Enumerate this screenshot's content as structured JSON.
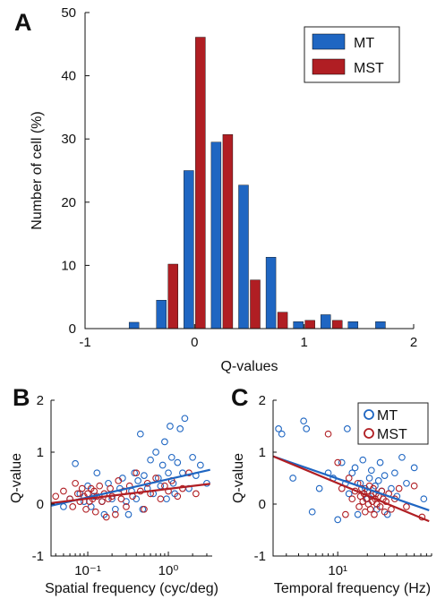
{
  "chart_data": [
    {
      "panel": "A",
      "type": "bar",
      "xlabel": "Q-values",
      "ylabel": "Number of cell (%)",
      "xlim": [
        -1,
        2
      ],
      "ylim": [
        0,
        50
      ],
      "xticks": [
        -1,
        0,
        1,
        2
      ],
      "yticks": [
        0,
        10,
        20,
        30,
        40,
        50
      ],
      "legend_position": "top-right",
      "bin_centers": [
        -0.75,
        -0.5,
        -0.25,
        0.0,
        0.25,
        0.5,
        0.75,
        1.0,
        1.25,
        1.5,
        1.75
      ],
      "series": [
        {
          "name": "MT",
          "color": "#1f66c2",
          "values": [
            0,
            1,
            4.5,
            25,
            29.5,
            22.7,
            11.3,
            1.1,
            2.2,
            1.1,
            1.1
          ]
        },
        {
          "name": "MST",
          "color": "#b01e23",
          "values": [
            0,
            0,
            10.2,
            46.1,
            30.7,
            7.7,
            2.6,
            1.3,
            1.3,
            0,
            0
          ]
        }
      ]
    },
    {
      "panel": "B",
      "type": "scatter",
      "xlabel": "Spatial frequency (cyc/deg)",
      "ylabel": "Q-value",
      "xscale": "log",
      "xlim": [
        0.035,
        3.5
      ],
      "ylim": [
        -1,
        2
      ],
      "xticks": [
        0.1,
        1.0
      ],
      "xtick_labels": [
        "10⁻¹",
        "10⁰"
      ],
      "yticks": [
        -1,
        0,
        1,
        2
      ],
      "series": [
        {
          "name": "MT",
          "color": "#1f66c2",
          "fit": [
            [
              0.035,
              -0.03
            ],
            [
              3.3,
              0.66
            ]
          ],
          "points": [
            [
              0.05,
              -0.05
            ],
            [
              0.06,
              0.1
            ],
            [
              0.07,
              0.78
            ],
            [
              0.08,
              0.2
            ],
            [
              0.09,
              0.05
            ],
            [
              0.1,
              0.35
            ],
            [
              0.11,
              -0.05
            ],
            [
              0.12,
              0.15
            ],
            [
              0.13,
              0.6
            ],
            [
              0.15,
              0.05
            ],
            [
              0.16,
              -0.2
            ],
            [
              0.18,
              0.4
            ],
            [
              0.2,
              0.1
            ],
            [
              0.22,
              -0.1
            ],
            [
              0.25,
              0.3
            ],
            [
              0.27,
              0.5
            ],
            [
              0.3,
              0.05
            ],
            [
              0.32,
              -0.2
            ],
            [
              0.35,
              0.25
            ],
            [
              0.38,
              0.6
            ],
            [
              0.4,
              0.1
            ],
            [
              0.42,
              0.45
            ],
            [
              0.45,
              1.35
            ],
            [
              0.48,
              -0.1
            ],
            [
              0.5,
              0.55
            ],
            [
              0.55,
              0.3
            ],
            [
              0.6,
              0.85
            ],
            [
              0.65,
              0.2
            ],
            [
              0.7,
              1.0
            ],
            [
              0.75,
              0.5
            ],
            [
              0.8,
              0.35
            ],
            [
              0.85,
              0.75
            ],
            [
              0.9,
              1.2
            ],
            [
              0.95,
              0.1
            ],
            [
              1.0,
              0.6
            ],
            [
              1.05,
              1.5
            ],
            [
              1.1,
              0.9
            ],
            [
              1.15,
              0.4
            ],
            [
              1.2,
              0.2
            ],
            [
              1.3,
              0.8
            ],
            [
              1.4,
              1.45
            ],
            [
              1.5,
              0.6
            ],
            [
              1.6,
              1.65
            ],
            [
              1.8,
              0.3
            ],
            [
              2.0,
              0.9
            ],
            [
              2.2,
              0.55
            ],
            [
              2.5,
              0.75
            ],
            [
              3.0,
              0.4
            ]
          ]
        },
        {
          "name": "MST",
          "color": "#b01e23",
          "fit": [
            [
              0.035,
              0.02
            ],
            [
              3.3,
              0.39
            ]
          ],
          "points": [
            [
              0.04,
              0.15
            ],
            [
              0.05,
              0.25
            ],
            [
              0.06,
              0.1
            ],
            [
              0.065,
              -0.05
            ],
            [
              0.07,
              0.4
            ],
            [
              0.075,
              0.2
            ],
            [
              0.08,
              0.05
            ],
            [
              0.085,
              0.3
            ],
            [
              0.09,
              0.15
            ],
            [
              0.095,
              -0.1
            ],
            [
              0.1,
              0.2
            ],
            [
              0.105,
              0.05
            ],
            [
              0.11,
              0.3
            ],
            [
              0.115,
              0.1
            ],
            [
              0.12,
              0.25
            ],
            [
              0.125,
              -0.15
            ],
            [
              0.13,
              0.15
            ],
            [
              0.14,
              0.35
            ],
            [
              0.15,
              0.05
            ],
            [
              0.16,
              0.2
            ],
            [
              0.17,
              -0.25
            ],
            [
              0.18,
              0.1
            ],
            [
              0.19,
              0.3
            ],
            [
              0.2,
              0.15
            ],
            [
              0.22,
              -0.2
            ],
            [
              0.24,
              0.45
            ],
            [
              0.26,
              0.1
            ],
            [
              0.28,
              0.25
            ],
            [
              0.3,
              -0.05
            ],
            [
              0.33,
              0.35
            ],
            [
              0.36,
              0.15
            ],
            [
              0.4,
              0.6
            ],
            [
              0.45,
              0.25
            ],
            [
              0.5,
              -0.1
            ],
            [
              0.55,
              0.4
            ],
            [
              0.6,
              0.2
            ],
            [
              0.7,
              0.5
            ],
            [
              0.8,
              0.1
            ],
            [
              0.9,
              0.35
            ],
            [
              1.0,
              0.25
            ],
            [
              1.1,
              0.45
            ],
            [
              1.3,
              0.15
            ],
            [
              1.5,
              0.3
            ],
            [
              1.8,
              0.6
            ],
            [
              2.2,
              0.2
            ]
          ]
        }
      ]
    },
    {
      "panel": "C",
      "type": "scatter",
      "xlabel": "Temporal frequency (Hz)",
      "ylabel": "Q-value",
      "xscale": "log",
      "xlim": [
        2.2,
        90
      ],
      "ylim": [
        -1,
        2
      ],
      "xticks": [
        10
      ],
      "xtick_labels": [
        "10¹"
      ],
      "yticks": [
        -1,
        0,
        1,
        2
      ],
      "legend_position": "top-right",
      "series": [
        {
          "name": "MT",
          "color": "#1f66c2",
          "fit": [
            [
              2.2,
              0.92
            ],
            [
              85,
              -0.12
            ]
          ],
          "points": [
            [
              2.5,
              1.45
            ],
            [
              2.7,
              1.35
            ],
            [
              3.5,
              0.5
            ],
            [
              4.5,
              1.6
            ],
            [
              4.8,
              1.45
            ],
            [
              5.5,
              -0.15
            ],
            [
              6.5,
              0.3
            ],
            [
              8,
              0.6
            ],
            [
              9,
              0.5
            ],
            [
              10,
              -0.3
            ],
            [
              11,
              0.8
            ],
            [
              12,
              0.4
            ],
            [
              12.5,
              1.45
            ],
            [
              13,
              0.2
            ],
            [
              14,
              0.6
            ],
            [
              15,
              0.7
            ],
            [
              16,
              -0.2
            ],
            [
              17,
              0.4
            ],
            [
              18,
              0.85
            ],
            [
              19,
              0.3
            ],
            [
              20,
              0.1
            ],
            [
              21,
              0.5
            ],
            [
              22,
              0.65
            ],
            [
              23,
              0.2
            ],
            [
              24,
              0.35
            ],
            [
              25,
              -0.1
            ],
            [
              26,
              0.45
            ],
            [
              27,
              0.8
            ],
            [
              28,
              0.25
            ],
            [
              30,
              0.55
            ],
            [
              32,
              -0.2
            ],
            [
              35,
              0.3
            ],
            [
              38,
              0.6
            ],
            [
              40,
              0.15
            ],
            [
              45,
              0.9
            ],
            [
              50,
              0.4
            ],
            [
              60,
              0.7
            ],
            [
              75,
              0.1
            ]
          ]
        },
        {
          "name": "MST",
          "color": "#b01e23",
          "fit": [
            [
              2.2,
              0.92
            ],
            [
              85,
              -0.33
            ]
          ],
          "points": [
            [
              8,
              1.35
            ],
            [
              10,
              0.8
            ],
            [
              11,
              0.3
            ],
            [
              12,
              -0.2
            ],
            [
              13,
              0.5
            ],
            [
              14,
              0.1
            ],
            [
              15,
              0.25
            ],
            [
              16,
              0.4
            ],
            [
              16.5,
              -0.05
            ],
            [
              17,
              0.15
            ],
            [
              17.5,
              0.3
            ],
            [
              18,
              0.05
            ],
            [
              18.5,
              0.2
            ],
            [
              19,
              -0.15
            ],
            [
              19.5,
              0.1
            ],
            [
              20,
              0.25
            ],
            [
              20.5,
              0.0
            ],
            [
              21,
              0.35
            ],
            [
              21.5,
              -0.1
            ],
            [
              22,
              0.15
            ],
            [
              22.5,
              0.05
            ],
            [
              23,
              0.3
            ],
            [
              23.5,
              -0.2
            ],
            [
              24,
              0.1
            ],
            [
              24.5,
              0.2
            ],
            [
              25,
              0.0
            ],
            [
              26,
              0.15
            ],
            [
              27,
              -0.05
            ],
            [
              28,
              0.25
            ],
            [
              29,
              0.1
            ],
            [
              30,
              -0.15
            ],
            [
              31,
              0.05
            ],
            [
              33,
              0.2
            ],
            [
              35,
              -0.1
            ],
            [
              38,
              0.1
            ],
            [
              42,
              0.3
            ],
            [
              50,
              -0.05
            ],
            [
              60,
              0.35
            ],
            [
              72,
              -0.25
            ]
          ]
        }
      ]
    }
  ],
  "panels": {
    "a": "A",
    "b": "B",
    "c": "C"
  },
  "legends": {
    "a": [
      "MT",
      "MST"
    ],
    "c": [
      "MT",
      "MST"
    ]
  },
  "colors": {
    "mt": "#1f66c2",
    "mst": "#b01e23"
  },
  "fonts_note": ""
}
